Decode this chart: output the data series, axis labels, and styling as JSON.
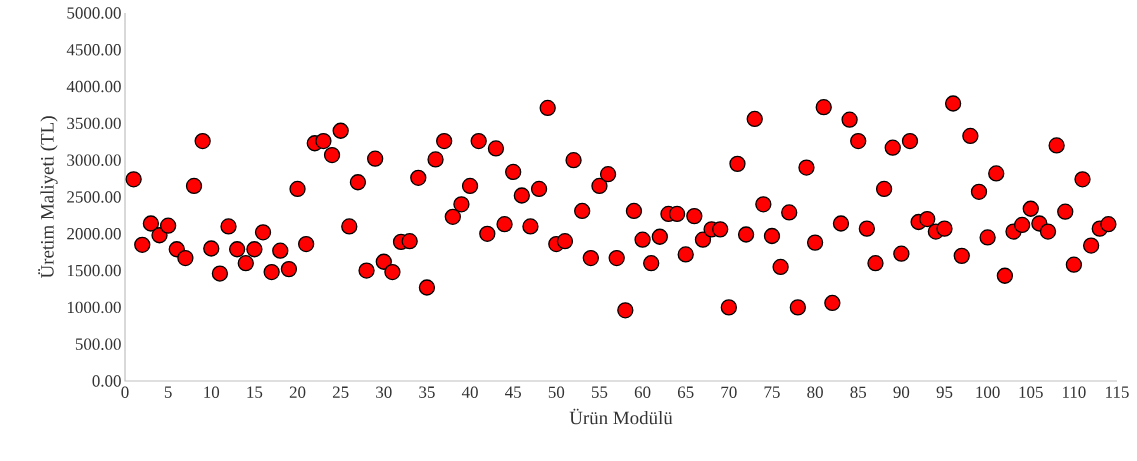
{
  "chart_data": {
    "type": "scatter",
    "xlabel": "Ürün Modülü",
    "ylabel": "Üretim Maliyeti (TL)",
    "color": "#ff0000",
    "marker": "circle",
    "x": [
      1,
      2,
      3,
      4,
      5,
      6,
      7,
      8,
      9,
      10,
      11,
      12,
      13,
      14,
      15,
      16,
      17,
      18,
      19,
      20,
      21,
      22,
      23,
      24,
      25,
      26,
      27,
      28,
      29,
      30,
      31,
      32,
      33,
      34,
      35,
      36,
      37,
      38,
      39,
      40,
      41,
      42,
      43,
      44,
      45,
      46,
      47,
      48,
      49,
      50,
      51,
      52,
      53,
      54,
      55,
      56,
      57,
      58,
      59,
      60,
      61,
      62,
      63,
      64,
      65,
      66,
      67,
      68,
      69,
      70,
      71,
      72,
      73,
      74,
      75,
      76,
      77,
      78,
      79,
      80,
      81,
      82,
      83,
      84,
      85,
      86,
      87,
      88,
      89,
      90,
      91,
      92,
      93,
      94,
      95,
      96,
      97,
      98,
      99,
      100,
      101,
      102,
      103,
      104,
      105,
      106,
      107,
      108,
      109,
      110,
      111,
      112,
      113,
      114
    ],
    "values": [
      2740,
      1850,
      2140,
      1980,
      2110,
      1790,
      1670,
      2650,
      3260,
      1800,
      1460,
      2100,
      1790,
      1600,
      1790,
      2020,
      1480,
      1770,
      1520,
      2610,
      1860,
      3230,
      3260,
      3070,
      3400,
      2100,
      2700,
      1500,
      3020,
      1620,
      1480,
      1890,
      1900,
      2760,
      1270,
      3010,
      3260,
      2230,
      2400,
      2650,
      3260,
      2000,
      3160,
      2130,
      2840,
      2520,
      2100,
      2610,
      3710,
      1860,
      1900,
      3000,
      2310,
      1670,
      2650,
      2810,
      1670,
      960,
      2310,
      1920,
      1600,
      1960,
      2270,
      2270,
      1720,
      2240,
      1920,
      2060,
      2060,
      1000,
      2950,
      1990,
      3560,
      2400,
      1970,
      1550,
      2290,
      1000,
      2900,
      1880,
      3720,
      1060,
      2140,
      3550,
      3260,
      2070,
      1600,
      2610,
      3170,
      1730,
      3260,
      2160,
      2200,
      2030,
      2070,
      3770,
      1700,
      3330,
      2570,
      1950,
      2820,
      1430,
      2030,
      2120,
      2340,
      2140,
      2030,
      3200,
      2300,
      1580,
      2740,
      1840,
      2070,
      2130
    ],
    "xlim": [
      0,
      115
    ],
    "ylim": [
      0,
      5000
    ],
    "xticks": [
      0,
      5,
      10,
      15,
      20,
      25,
      30,
      35,
      40,
      45,
      50,
      55,
      60,
      65,
      70,
      75,
      80,
      85,
      90,
      95,
      100,
      105,
      110,
      115
    ],
    "yticks": [
      {
        "value": 0,
        "label": "0.00"
      },
      {
        "value": 500,
        "label": "500.00"
      },
      {
        "value": 1000,
        "label": "1000.00"
      },
      {
        "value": 1500,
        "label": "1500.00"
      },
      {
        "value": 2000,
        "label": "2000.00"
      },
      {
        "value": 2500,
        "label": "2500.00"
      },
      {
        "value": 3000,
        "label": "3000.00"
      },
      {
        "value": 3500,
        "label": "3500.00"
      },
      {
        "value": 4000,
        "label": "4000.00"
      },
      {
        "value": 4500,
        "label": "4500.00"
      },
      {
        "value": 5000,
        "label": "5000.00"
      }
    ]
  }
}
